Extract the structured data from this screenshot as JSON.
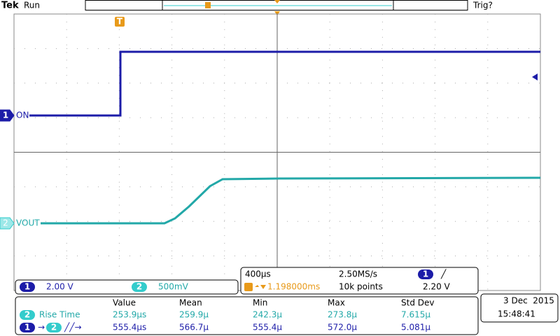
{
  "header": {
    "brand": "Tek",
    "status": "Run",
    "trigger_status": "Trig?"
  },
  "trigger_marker": "T",
  "traces": [
    {
      "channel": "1",
      "label": "ON"
    },
    {
      "channel": "2",
      "label": "VOUT"
    }
  ],
  "channel_settings": [
    {
      "channel": "1",
      "scale": "2.00 V"
    },
    {
      "channel": "2",
      "scale": "500mV"
    }
  ],
  "timebase": {
    "scale": "400µs",
    "sample_rate": "2.50MS/s",
    "trigger_channel": "1",
    "trigger_slope": "╱",
    "trigger_position": "1.198000ms",
    "record_length": "10k points",
    "trigger_level": "2.20 V"
  },
  "measurements": {
    "columns": [
      "Value",
      "Mean",
      "Min",
      "Max",
      "Std Dev"
    ],
    "rows": [
      {
        "channel": "2",
        "label": "Rise Time",
        "values": [
          "253.9µs",
          "259.9µ",
          "242.3µ",
          "273.8µ",
          "7.615µ"
        ]
      },
      {
        "source": "1",
        "arrow": "→",
        "target": "2",
        "label": "╱╱→",
        "values": [
          "555.4µs",
          "566.7µ",
          "555.4µ",
          "572.0µ",
          "5.081µ"
        ]
      }
    ]
  },
  "datetime": {
    "date": "3 Dec  2015",
    "time": "15:48:41"
  }
}
